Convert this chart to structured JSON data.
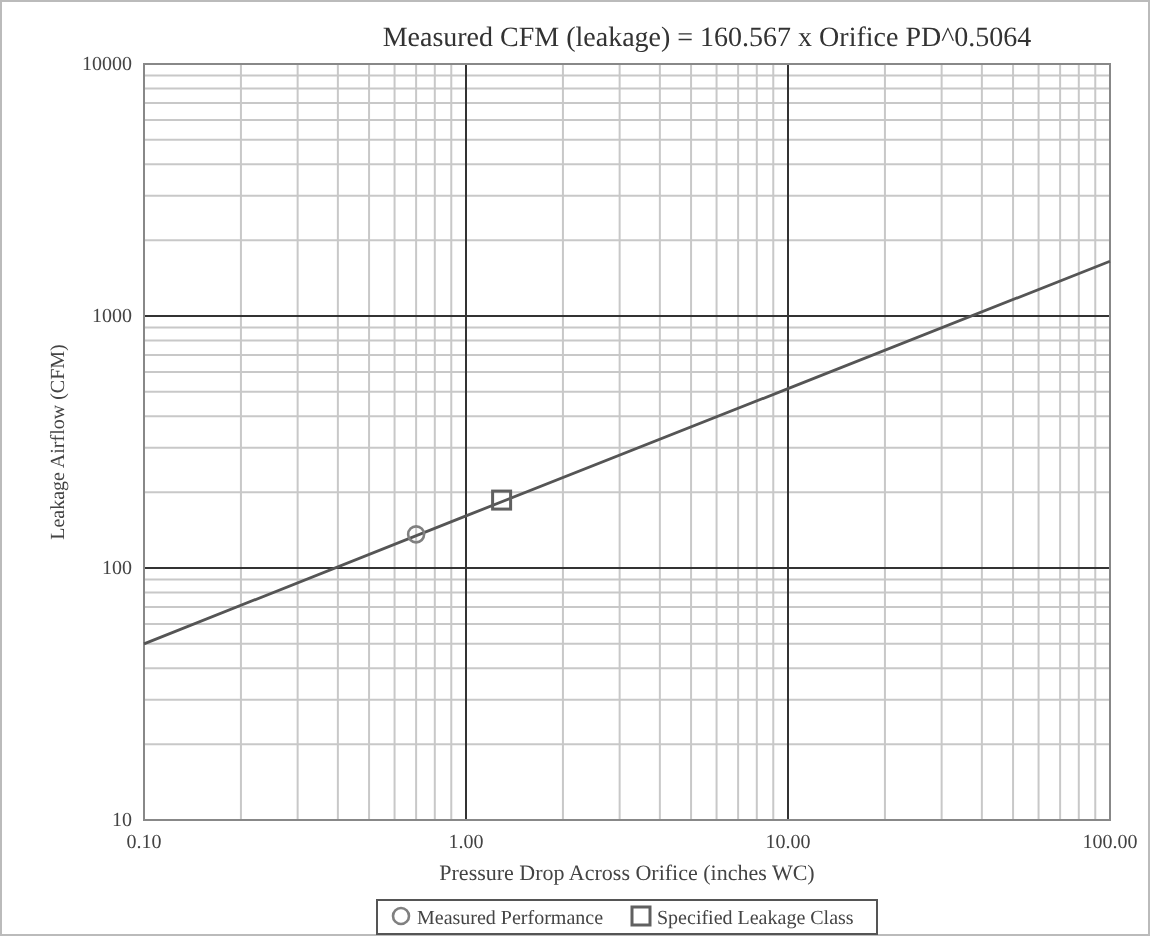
{
  "chart_data": {
    "type": "scatter",
    "title": "Measured CFM (leakage) = 160.567 x Orifice  PD^0.5064",
    "xlabel": "Pressure Drop Across Orifice (inches WC)",
    "ylabel": "Leakage Airflow (CFM)",
    "log": "xy",
    "grid": true,
    "legend": "bottom",
    "xlim": [
      0.1,
      100
    ],
    "xticks": [
      {
        "value": 0.1,
        "label": "0.10"
      },
      {
        "value": 1,
        "label": "1.00"
      },
      {
        "value": 10,
        "label": "10.00"
      },
      {
        "value": 100,
        "label": "100.00"
      }
    ],
    "ylim": [
      10,
      10000
    ],
    "yticks": [
      10,
      100,
      1000,
      10000
    ],
    "series": [
      {
        "type": "line",
        "color": "#555555",
        "x": [
          0.1,
          1,
          10,
          100
        ],
        "values": [
          50,
          161,
          515,
          1650
        ],
        "line_style": "solid"
      },
      {
        "name": "Measured Performance",
        "marker": "circle",
        "color": "#808080",
        "x": [
          0.7
        ],
        "values": [
          136
        ]
      },
      {
        "name": "Specified Leakage Class",
        "marker": "square",
        "color": "#606060",
        "x": [
          1.29
        ],
        "values": [
          186
        ]
      }
    ]
  }
}
